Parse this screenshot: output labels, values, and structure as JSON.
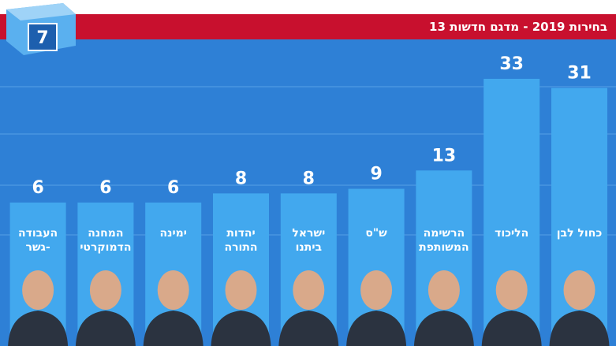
{
  "logo": "7",
  "chart_data": {
    "type": "bar",
    "title": "בחירות 2019 - מדגם חדשות 13",
    "categories": [
      [
        "כחול לבן"
      ],
      [
        "הליכוד"
      ],
      [
        "הרשימה",
        "המשותפת"
      ],
      [
        "ש\"ס"
      ],
      [
        "ישראל",
        "ביתנו"
      ],
      [
        "יהדות",
        "התורה"
      ],
      [
        "ימינה"
      ],
      [
        "המחנה",
        "הדמוקרטי"
      ],
      [
        "העבודה",
        "-גשר"
      ]
    ],
    "values": [
      31,
      33,
      13,
      9,
      8,
      8,
      6,
      6,
      6
    ],
    "color": "#42a8ee"
  }
}
